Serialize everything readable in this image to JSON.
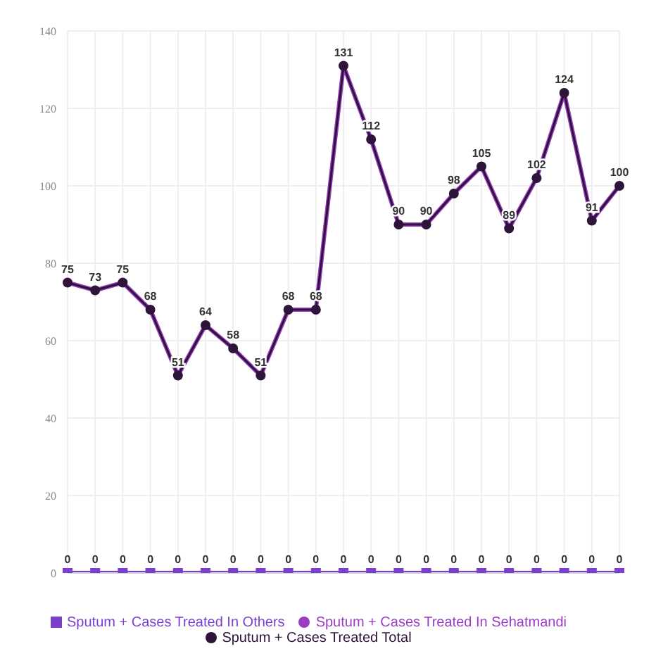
{
  "chart_data": {
    "type": "line",
    "categories": [
      null,
      null,
      null,
      null,
      null,
      null,
      null,
      null,
      null,
      null,
      null,
      null,
      null,
      null,
      null,
      null,
      null,
      null,
      null,
      null,
      null
    ],
    "series": [
      {
        "name": "Sputum + Cases Treated Total",
        "color": "#2e1438",
        "marker": "circle",
        "values": [
          75,
          73,
          75,
          68,
          51,
          64,
          58,
          51,
          68,
          68,
          131,
          112,
          90,
          90,
          98,
          105,
          89,
          102,
          124,
          91,
          100
        ]
      },
      {
        "name": "Sputum + Cases Treated In Others",
        "color": "#7b3fd0",
        "marker": "square",
        "values": [
          0,
          0,
          0,
          0,
          0,
          0,
          0,
          0,
          0,
          0,
          0,
          0,
          0,
          0,
          0,
          0,
          0,
          0,
          0,
          0,
          0
        ]
      },
      {
        "name": "Sputum + Cases Treated In Sehatmandi",
        "color": "#9b3cc4",
        "marker": "circle",
        "values": [
          75,
          73,
          75,
          68,
          51,
          64,
          58,
          51,
          68,
          68,
          131,
          112,
          90,
          90,
          98,
          105,
          89,
          102,
          124,
          91,
          100
        ],
        "value_labels": [
          null,
          null,
          null,
          null,
          null,
          null,
          null,
          null,
          null,
          null,
          null,
          null,
          null,
          null,
          null,
          null,
          null,
          null,
          null,
          null,
          null
        ]
      }
    ],
    "ylim": [
      0,
      140
    ],
    "yticks": [
      0,
      20,
      40,
      60,
      80,
      100,
      120,
      140
    ],
    "grid": true,
    "legend": "bottom",
    "data_labels": true,
    "line_style": "solid"
  }
}
